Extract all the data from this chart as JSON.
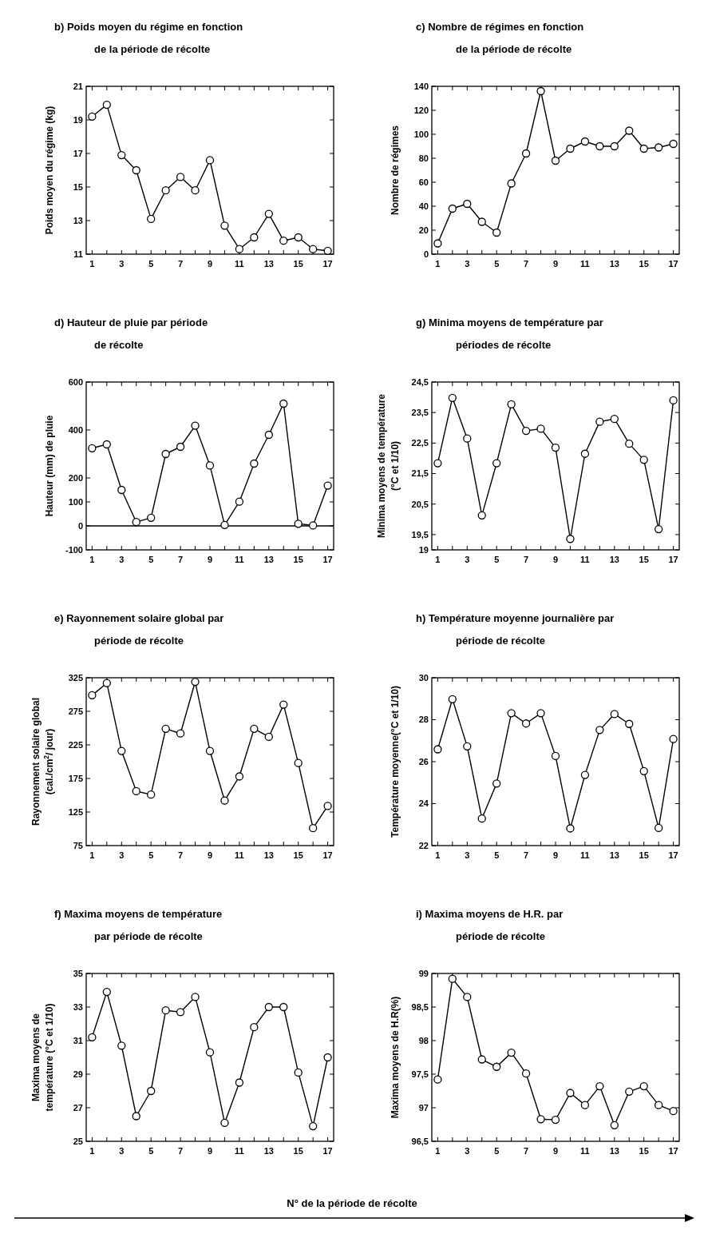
{
  "chart_data": [
    {
      "type": "line",
      "title": "b)  Poids moyen du régime en fonction\nde la période de récolte",
      "ylabel": "Poids moyen du régime (kg)",
      "x": [
        1,
        2,
        3,
        4,
        5,
        6,
        7,
        8,
        9,
        10,
        11,
        12,
        13,
        14,
        15,
        16,
        17
      ],
      "values": [
        19.2,
        19.9,
        16.9,
        16.0,
        13.1,
        14.8,
        15.6,
        14.8,
        16.6,
        12.7,
        11.3,
        12.0,
        13.4,
        11.8,
        12.0,
        11.3,
        11.2
      ],
      "color": "#000000",
      "marker": "circle",
      "xlim": [
        0.6,
        17.4
      ],
      "xticks": [
        1,
        {
          "value": 2,
          "label": null
        },
        3,
        {
          "value": 4,
          "label": null
        },
        5,
        {
          "value": 6,
          "label": null
        },
        7,
        {
          "value": 8,
          "label": null
        },
        9,
        {
          "value": 10,
          "label": null
        },
        11,
        {
          "value": 12,
          "label": null
        },
        13,
        {
          "value": 14,
          "label": null
        },
        15,
        {
          "value": 16,
          "label": null
        },
        17
      ],
      "ylim": [
        11,
        21
      ],
      "yticks": [
        11,
        13,
        15,
        17,
        19,
        21
      ],
      "grid": false
    },
    {
      "type": "line",
      "title": "c) Nombre de régimes en fonction\nde la période de récolte",
      "ylabel": "Nombre de régimes",
      "x": [
        1,
        2,
        3,
        4,
        5,
        6,
        7,
        8,
        9,
        10,
        11,
        12,
        13,
        14,
        15,
        16,
        17
      ],
      "values": [
        9,
        38,
        42,
        27,
        18,
        59,
        84,
        136,
        78,
        88,
        94,
        90,
        90,
        103,
        88,
        89,
        92
      ],
      "color": "#000000",
      "marker": "circle",
      "xlim": [
        0.6,
        17.4
      ],
      "xticks": [
        1,
        {
          "value": 2,
          "label": null
        },
        3,
        {
          "value": 4,
          "label": null
        },
        5,
        {
          "value": 6,
          "label": null
        },
        7,
        {
          "value": 8,
          "label": null
        },
        9,
        {
          "value": 10,
          "label": null
        },
        11,
        {
          "value": 12,
          "label": null
        },
        13,
        {
          "value": 14,
          "label": null
        },
        15,
        {
          "value": 16,
          "label": null
        },
        17
      ],
      "ylim": [
        0,
        140
      ],
      "yticks": [
        0,
        20,
        40,
        60,
        80,
        100,
        120,
        140
      ],
      "grid": false
    },
    {
      "type": "line",
      "title": "d)  Hauteur de pluie par période\nde récolte",
      "ylabel": "Hauteur (mm) de pluie",
      "x": [
        1,
        2,
        3,
        4,
        5,
        6,
        7,
        8,
        9,
        10,
        11,
        12,
        13,
        14,
        15,
        16,
        17
      ],
      "values": [
        324,
        340,
        150,
        16,
        34,
        300,
        330,
        418,
        252,
        4,
        101,
        260,
        380,
        510,
        9,
        2,
        168
      ],
      "color": "#000000",
      "marker": "circle",
      "xlim": [
        0.6,
        17.4
      ],
      "xticks": [
        1,
        {
          "value": 2,
          "label": null
        },
        3,
        {
          "value": 4,
          "label": null
        },
        5,
        {
          "value": 6,
          "label": null
        },
        7,
        {
          "value": 8,
          "label": null
        },
        9,
        {
          "value": 10,
          "label": null
        },
        11,
        {
          "value": 12,
          "label": null
        },
        13,
        {
          "value": 14,
          "label": null
        },
        15,
        {
          "value": 16,
          "label": null
        },
        17
      ],
      "ylim": [
        -100,
        600
      ],
      "yticks": [
        -100,
        0,
        100,
        200,
        400,
        600
      ],
      "ref_lines": [
        {
          "axis": "y",
          "value": 0,
          "color": "#000000"
        }
      ],
      "grid": false
    },
    {
      "type": "line",
      "title": "g) Minima moyens de température par\npériodes de récolte",
      "ylabel": "Minima moyens de température\n(°C et 1/10)",
      "x": [
        1,
        2,
        3,
        4,
        5,
        6,
        7,
        8,
        9,
        10,
        11,
        12,
        13,
        14,
        15,
        16,
        17
      ],
      "values": [
        21.84,
        23.98,
        22.65,
        20.13,
        21.84,
        23.77,
        22.9,
        22.97,
        22.35,
        19.36,
        22.15,
        23.2,
        23.29,
        22.48,
        21.95,
        19.68,
        23.9
      ],
      "color": "#000000",
      "marker": "circle",
      "xlim": [
        0.6,
        17.4
      ],
      "xticks": [
        1,
        {
          "value": 2,
          "label": null
        },
        3,
        {
          "value": 4,
          "label": null
        },
        5,
        {
          "value": 6,
          "label": null
        },
        7,
        {
          "value": 8,
          "label": null
        },
        9,
        {
          "value": 10,
          "label": null
        },
        11,
        {
          "value": 12,
          "label": null
        },
        13,
        {
          "value": 14,
          "label": null
        },
        15,
        {
          "value": 16,
          "label": null
        },
        17
      ],
      "ylim": [
        19,
        24.5
      ],
      "yticks": [
        19,
        {
          "value": 19.5,
          "label": "19,5"
        },
        {
          "value": 20.5,
          "label": "20,5"
        },
        {
          "value": 21.5,
          "label": "21,5"
        },
        {
          "value": 22.5,
          "label": "22,5"
        },
        {
          "value": 23.5,
          "label": "23,5"
        },
        {
          "value": 24.5,
          "label": "24,5"
        }
      ],
      "grid": false
    },
    {
      "type": "line",
      "title": "e)  Rayonnement solaire global par\npériode de récolte",
      "ylabel": "Rayonnement solaire global\n(cal./cm$^{2}$/ jour)",
      "x": [
        1,
        2,
        3,
        4,
        5,
        6,
        7,
        8,
        9,
        10,
        11,
        12,
        13,
        14,
        15,
        16,
        17
      ],
      "values": [
        299,
        317,
        216,
        156,
        151,
        249,
        242,
        319,
        216,
        142,
        178,
        249,
        237,
        285,
        198,
        101,
        134
      ],
      "color": "#000000",
      "marker": "circle",
      "xlim": [
        0.6,
        17.4
      ],
      "xticks": [
        1,
        {
          "value": 2,
          "label": null
        },
        3,
        {
          "value": 4,
          "label": null
        },
        5,
        {
          "value": 6,
          "label": null
        },
        7,
        {
          "value": 8,
          "label": null
        },
        9,
        {
          "value": 10,
          "label": null
        },
        11,
        {
          "value": 12,
          "label": null
        },
        13,
        {
          "value": 14,
          "label": null
        },
        15,
        {
          "value": 16,
          "label": null
        },
        17
      ],
      "ylim": [
        75,
        325
      ],
      "yticks": [
        75,
        125,
        175,
        225,
        275,
        325
      ],
      "grid": false
    },
    {
      "type": "line",
      "title": "h)  Température moyenne journalière par\npériode de récolte",
      "ylabel": "Température moyenne(°C et 1/10)",
      "x": [
        1,
        2,
        3,
        4,
        5,
        6,
        7,
        8,
        9,
        10,
        11,
        12,
        13,
        14,
        15,
        16,
        17
      ],
      "values": [
        26.59,
        28.98,
        26.73,
        23.29,
        24.96,
        28.31,
        27.82,
        28.31,
        26.27,
        22.82,
        25.37,
        27.51,
        28.27,
        27.8,
        25.55,
        22.84,
        27.08
      ],
      "color": "#000000",
      "marker": "circle",
      "xlim": [
        0.6,
        17.4
      ],
      "xticks": [
        1,
        {
          "value": 2,
          "label": null
        },
        3,
        {
          "value": 4,
          "label": null
        },
        5,
        {
          "value": 6,
          "label": null
        },
        7,
        {
          "value": 8,
          "label": null
        },
        9,
        {
          "value": 10,
          "label": null
        },
        11,
        {
          "value": 12,
          "label": null
        },
        13,
        {
          "value": 14,
          "label": null
        },
        15,
        {
          "value": 16,
          "label": null
        },
        17
      ],
      "ylim": [
        22,
        30
      ],
      "yticks": [
        22,
        24,
        26,
        28,
        30
      ],
      "grid": false
    },
    {
      "type": "line",
      "title": "f)  Maxima moyens de température\npar période de récolte",
      "ylabel": "Maxima moyens de\ntempérature (°C et 1/10)",
      "x": [
        1,
        2,
        3,
        4,
        5,
        6,
        7,
        8,
        9,
        10,
        11,
        12,
        13,
        14,
        15,
        16,
        17
      ],
      "values": [
        31.2,
        33.9,
        30.7,
        26.5,
        28.0,
        32.8,
        32.7,
        33.6,
        30.3,
        26.1,
        28.5,
        31.8,
        33.0,
        33.0,
        29.1,
        25.9,
        30.0
      ],
      "color": "#000000",
      "marker": "circle",
      "xlim": [
        0.6,
        17.4
      ],
      "xticks": [
        1,
        {
          "value": 2,
          "label": null
        },
        3,
        {
          "value": 4,
          "label": null
        },
        5,
        {
          "value": 6,
          "label": null
        },
        7,
        {
          "value": 8,
          "label": null
        },
        9,
        {
          "value": 10,
          "label": null
        },
        11,
        {
          "value": 12,
          "label": null
        },
        13,
        {
          "value": 14,
          "label": null
        },
        15,
        {
          "value": 16,
          "label": null
        },
        17
      ],
      "ylim": [
        25,
        35
      ],
      "yticks": [
        25,
        27,
        29,
        31,
        33,
        35
      ],
      "grid": false
    },
    {
      "type": "line",
      "title": "i)  Maxima moyens de H.R. par\npériode de récolte",
      "ylabel": "Maxima moyens de H.R(%)",
      "x": [
        1,
        2,
        3,
        4,
        5,
        6,
        7,
        8,
        9,
        10,
        11,
        12,
        13,
        14,
        15,
        16,
        17
      ],
      "values": [
        97.42,
        98.92,
        98.65,
        97.72,
        97.61,
        97.82,
        97.51,
        96.83,
        96.82,
        97.22,
        97.04,
        97.32,
        96.74,
        97.24,
        97.32,
        97.04,
        96.95
      ],
      "color": "#000000",
      "marker": "circle",
      "xlim": [
        0.6,
        17.4
      ],
      "xticks": [
        1,
        {
          "value": 2,
          "label": null
        },
        3,
        {
          "value": 4,
          "label": null
        },
        5,
        {
          "value": 6,
          "label": null
        },
        7,
        {
          "value": 8,
          "label": null
        },
        9,
        {
          "value": 10,
          "label": null
        },
        11,
        {
          "value": 12,
          "label": null
        },
        13,
        {
          "value": 14,
          "label": null
        },
        15,
        {
          "value": 16,
          "label": null
        },
        17
      ],
      "ylim": [
        96.5,
        99
      ],
      "yticks": [
        {
          "value": 96.5,
          "label": "96,5"
        },
        97,
        {
          "value": 97.5,
          "label": "97,5"
        },
        98,
        {
          "value": 98.5,
          "label": "98,5"
        },
        99
      ],
      "grid": false,
      "annotations": [
        "N° de la période de récolte"
      ]
    }
  ]
}
